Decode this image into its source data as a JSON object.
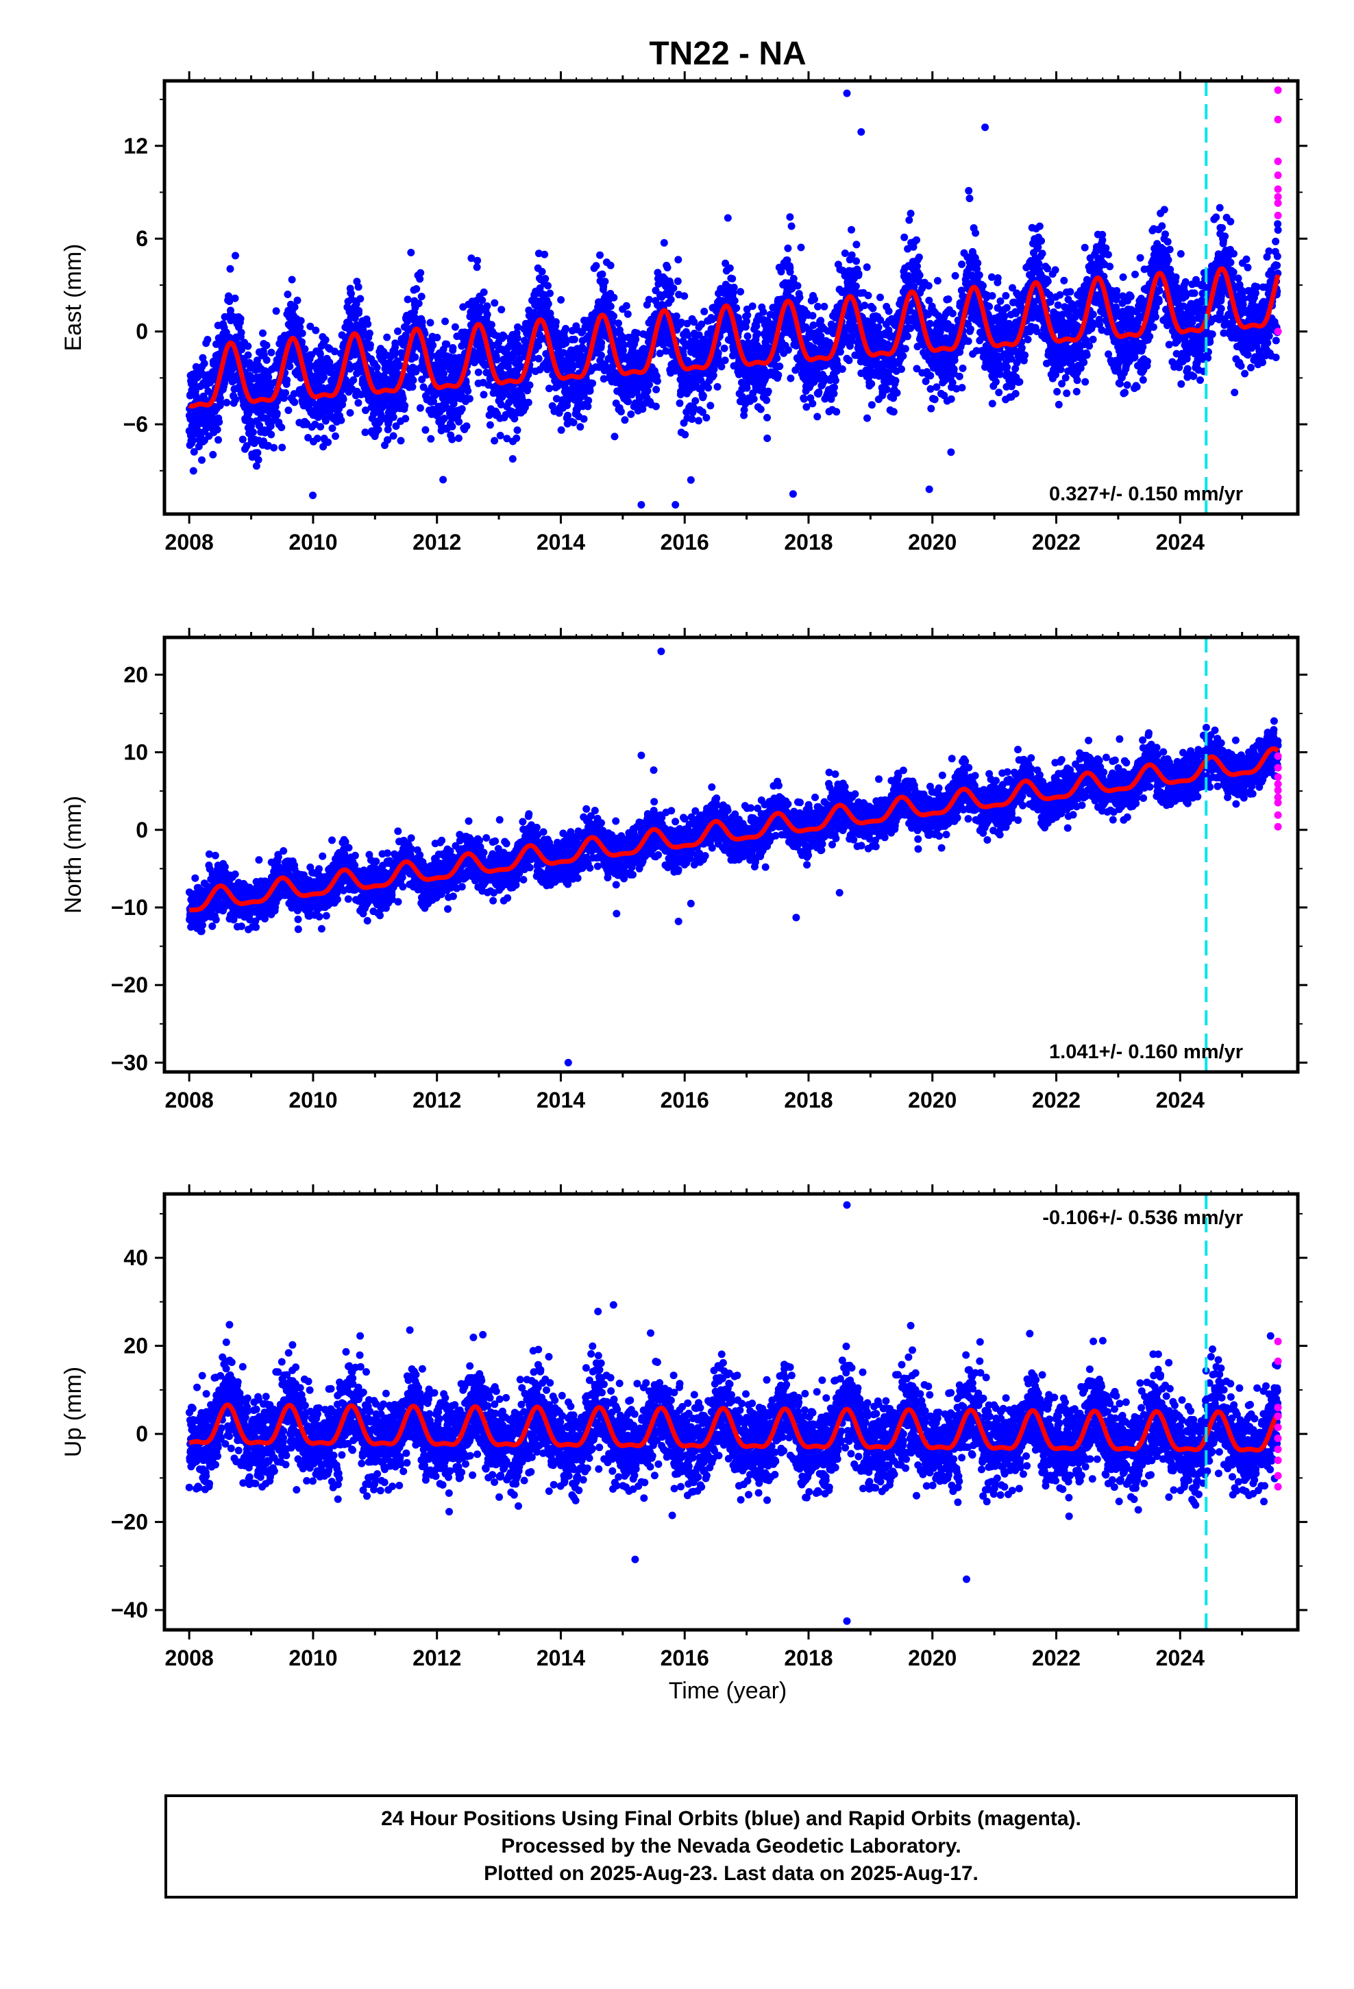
{
  "title": "TN22 - NA",
  "xlabel": "Time (year)",
  "footer": {
    "line1": "24 Hour Positions Using Final Orbits (blue) and Rapid Orbits (magenta).",
    "line2": "Processed by the Nevada Geodetic Laboratory.",
    "line3": "Plotted on 2025-Aug-23. Last data on 2025-Aug-17."
  },
  "colors": {
    "final_orbit_points": "#0000ff",
    "rapid_orbit_points": "#ff00ff",
    "model_line": "#ff0000",
    "equipment_change_line": "#00e5ee"
  },
  "chart_data": [
    {
      "type": "scatter",
      "component": "east",
      "ylabel": "East (mm)",
      "rate_label": "0.327+/- 0.150 mm/yr",
      "rate_position": "bottom-right",
      "xlim": [
        2007.6,
        2025.9
      ],
      "ylim": [
        -11.8,
        16.2
      ],
      "xticks": [
        "2008",
        "2010",
        "2012",
        "2014",
        "2016",
        "2018",
        "2020",
        "2022",
        "2024"
      ],
      "yticks": [
        "-6",
        "0",
        "6",
        "12"
      ],
      "model": {
        "offset_2008": -3.5,
        "trend": 0.3,
        "seasonal_amplitude": 1.9,
        "peak_phase_year": 0.67,
        "noise_sigma": 1.6
      },
      "equipment_change_epoch": 2024.42,
      "outliers": [
        [
          2018.62,
          15.4
        ],
        [
          2018.85,
          12.9
        ],
        [
          2020.85,
          13.2
        ],
        [
          2017.7,
          7.4
        ],
        [
          2020.6,
          8.6
        ],
        [
          2015.3,
          -11.2
        ],
        [
          2015.85,
          -11.2
        ],
        [
          2016.1,
          -9.6
        ],
        [
          2017.75,
          -10.5
        ],
        [
          2019.95,
          -10.2
        ],
        [
          2020.3,
          -7.8
        ],
        [
          2008.9,
          -7.6
        ],
        [
          2009.5,
          -7.5
        ]
      ],
      "rapid_points": [
        15.6,
        13.7,
        11.0,
        10.1,
        9.2,
        8.7,
        8.3,
        7.5,
        0.0
      ]
    },
    {
      "type": "scatter",
      "component": "north",
      "ylabel": "North (mm)",
      "rate_label": "1.041+/- 0.160 mm/yr",
      "rate_position": "bottom-right",
      "xlim": [
        2007.6,
        2025.9
      ],
      "ylim": [
        -31.2,
        24.8
      ],
      "xticks": [
        "2008",
        "2010",
        "2012",
        "2014",
        "2016",
        "2018",
        "2020",
        "2022",
        "2024"
      ],
      "yticks": [
        "-30",
        "-20",
        "-10",
        "0",
        "10",
        "20"
      ],
      "model": {
        "offset_2008": -9.5,
        "trend": 1.04,
        "seasonal_amplitude": 1.3,
        "peak_phase_year": 0.5,
        "noise_sigma": 1.5
      },
      "equipment_change_epoch": 2024.42,
      "outliers": [
        [
          2015.62,
          23.0
        ],
        [
          2015.3,
          9.6
        ],
        [
          2015.5,
          7.7
        ],
        [
          2014.12,
          -30.0
        ],
        [
          2014.9,
          -10.8
        ],
        [
          2015.9,
          -11.8
        ],
        [
          2017.8,
          -11.3
        ],
        [
          2018.5,
          -8.1
        ],
        [
          2016.1,
          -9.5
        ]
      ],
      "rapid_points": [
        9.5,
        8.0,
        6.8,
        5.9,
        5.1,
        4.2,
        3.5,
        1.9,
        0.4
      ]
    },
    {
      "type": "scatter",
      "component": "up",
      "ylabel": "Up (mm)",
      "rate_label": "-0.106+/- 0.536 mm/yr",
      "rate_position": "top-right",
      "xlim": [
        2007.6,
        2025.9
      ],
      "ylim": [
        -44.5,
        54.5
      ],
      "xticks": [
        "2008",
        "2010",
        "2012",
        "2014",
        "2016",
        "2018",
        "2020",
        "2022",
        "2024"
      ],
      "yticks": [
        "-40",
        "-20",
        "0",
        "20",
        "40"
      ],
      "model": {
        "offset_2008": 1.0,
        "trend": -0.1,
        "seasonal_amplitude": 4.2,
        "peak_phase_year": 0.62,
        "noise_sigma": 5.0
      },
      "equipment_change_epoch": 2024.42,
      "outliers": [
        [
          2018.62,
          52.0
        ],
        [
          2018.62,
          -42.5
        ],
        [
          2020.55,
          -33.0
        ],
        [
          2015.2,
          -28.5
        ],
        [
          2014.85,
          29.3
        ],
        [
          2014.6,
          27.8
        ],
        [
          2008.65,
          24.8
        ],
        [
          2019.65,
          24.6
        ],
        [
          2015.8,
          -18.5
        ]
      ],
      "rapid_points": [
        21.0,
        16.5,
        6.0,
        4.0,
        1.5,
        -1.0,
        -3.5,
        -6.0,
        -9.5,
        -12.0
      ]
    }
  ]
}
